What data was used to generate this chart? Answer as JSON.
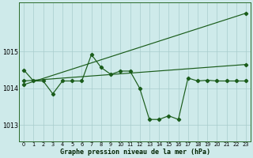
{
  "background_color": "#ceeaea",
  "grid_color": "#a8cccc",
  "line_color": "#1a5c1a",
  "xlabel": "Graphe pression niveau de la mer (hPa)",
  "xlim": [
    -0.5,
    23.5
  ],
  "ylim": [
    1012.55,
    1016.35
  ],
  "yticks": [
    1013,
    1014,
    1015
  ],
  "xticks": [
    0,
    1,
    2,
    3,
    4,
    5,
    6,
    7,
    8,
    9,
    10,
    11,
    12,
    13,
    14,
    15,
    16,
    17,
    18,
    19,
    20,
    21,
    22,
    23
  ],
  "measured_x": [
    0,
    1,
    2,
    3,
    4,
    5,
    6,
    7,
    8,
    9,
    10,
    11,
    12,
    13,
    14,
    15,
    16,
    17,
    18,
    19,
    20,
    21,
    22,
    23
  ],
  "measured_y": [
    1014.5,
    1014.2,
    1014.2,
    1013.85,
    1014.2,
    1014.2,
    1014.2,
    1014.92,
    1014.57,
    1014.38,
    1014.47,
    1014.47,
    1014.0,
    1013.15,
    1013.15,
    1013.25,
    1013.15,
    1014.28,
    1014.2,
    1014.22,
    1014.2,
    1014.2,
    1014.2,
    1014.2
  ],
  "trend1_x": [
    0,
    23
  ],
  "trend1_y": [
    1014.2,
    1014.65
  ],
  "trend2_x": [
    0,
    23
  ],
  "trend2_y": [
    1014.1,
    1016.05
  ]
}
